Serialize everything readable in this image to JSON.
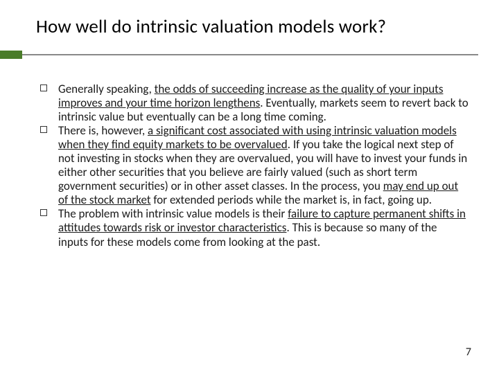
{
  "slide": {
    "title": "How well do intrinsic valuation models work?",
    "page_number": "7",
    "accent_color": "#4a7c2a",
    "rule_color": "#888888",
    "bullets": [
      {
        "segments": [
          {
            "text": "Generally speaking, ",
            "u": false
          },
          {
            "text": "the odds of succeeding increase as the quality of your inputs improves and your time horizon lengthens",
            "u": true
          },
          {
            "text": ". Eventually, markets seem to revert back to intrinsic value but eventually can be a long time coming.",
            "u": false
          }
        ]
      },
      {
        "segments": [
          {
            "text": "There is, however, ",
            "u": false
          },
          {
            "text": "a significant cost associated with using intrinsic valuation models when they find equity markets to be overvalued",
            "u": true
          },
          {
            "text": ". If you take the logical next step of not investing in stocks when they are overvalued, you will have to invest your funds in either other securities that you believe are fairly valued (such as short term government securities) or in other asset classes. In the process, you ",
            "u": false
          },
          {
            "text": "may end up out of the stock market",
            "u": true
          },
          {
            "text": " for extended periods while the market is, in fact, going up.",
            "u": false
          }
        ]
      },
      {
        "segments": [
          {
            "text": "The problem with intrinsic value models is their ",
            "u": false
          },
          {
            "text": "failure to capture permanent shifts in attitudes towards risk or investor characteristics",
            "u": true
          },
          {
            "text": ". This is because so many of the inputs for these models come from looking at the past.",
            "u": false
          }
        ]
      }
    ]
  }
}
